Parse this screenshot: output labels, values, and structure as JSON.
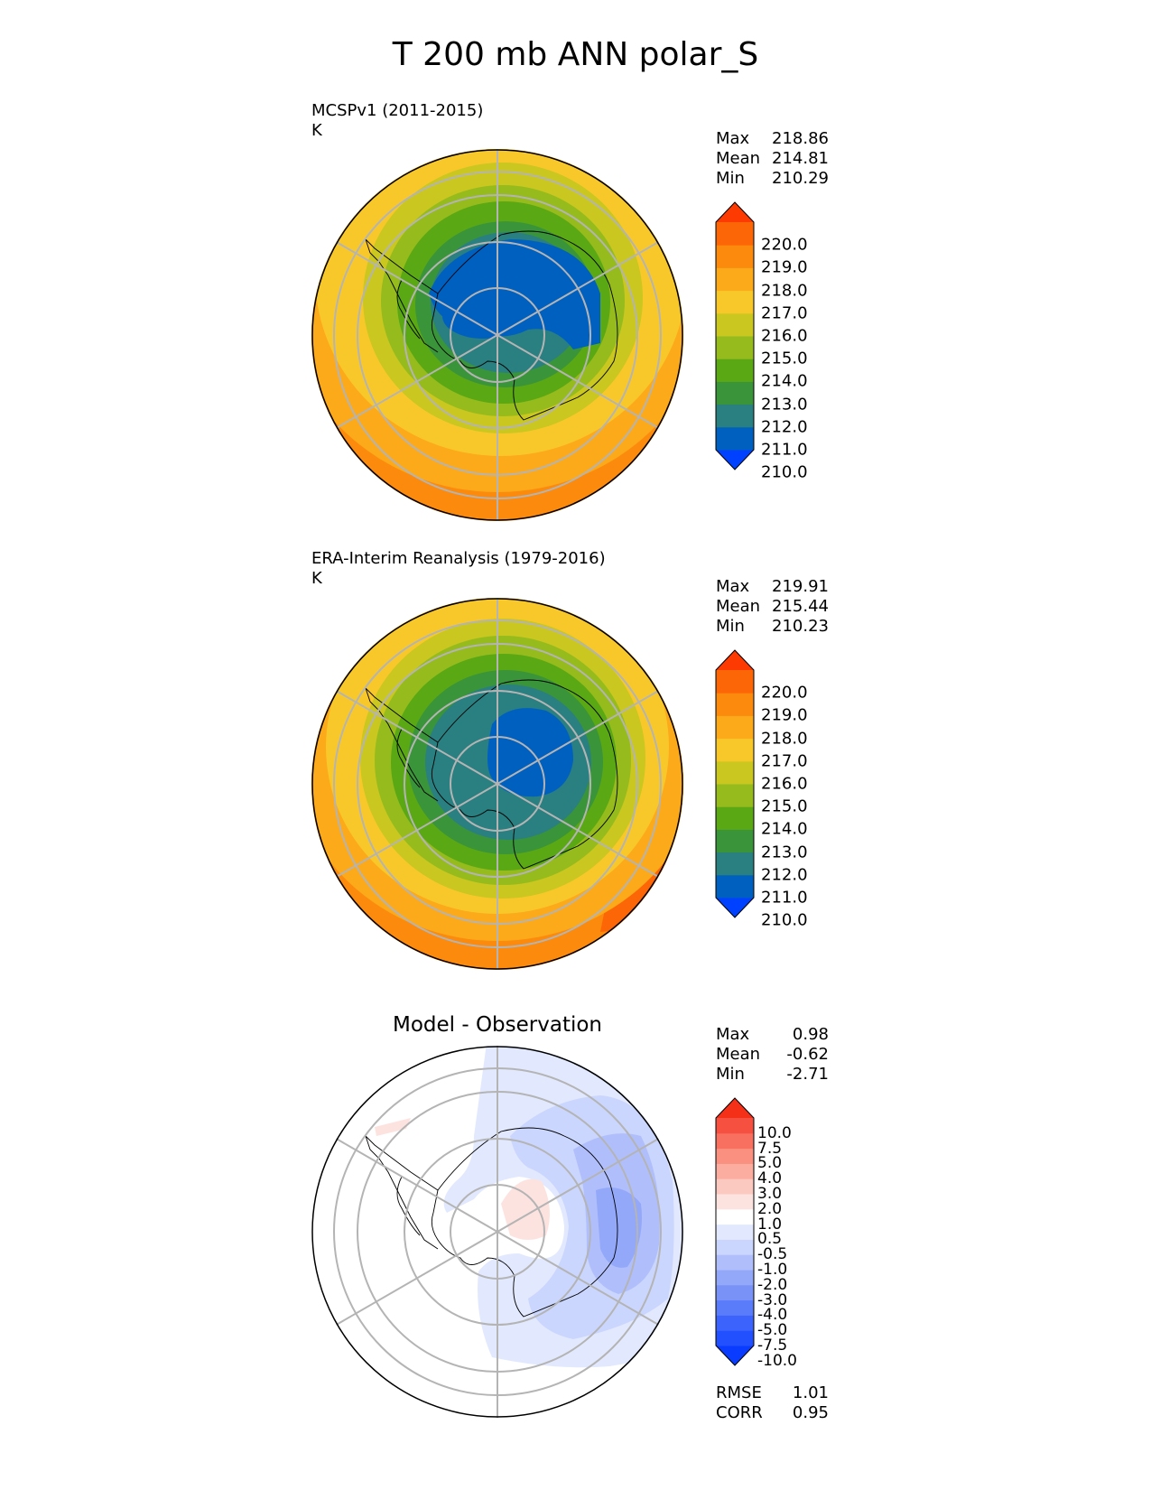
{
  "title": "T 200 mb ANN polar_S",
  "panels": [
    {
      "id": "model",
      "title": "MCSPv1 (2011-2015)",
      "units": "K",
      "stats": [
        {
          "label": "Max",
          "value": "218.86"
        },
        {
          "label": "Mean",
          "value": "214.81"
        },
        {
          "label": "Min",
          "value": "210.29"
        }
      ],
      "colorbar": {
        "labels": [
          "220.0",
          "219.0",
          "218.0",
          "217.0",
          "216.0",
          "215.0",
          "214.0",
          "213.0",
          "212.0",
          "211.0",
          "210.0"
        ],
        "colors": [
          "#0040ff",
          "#0060c0",
          "#2a7f80",
          "#3a943a",
          "#5aa814",
          "#95bb1c",
          "#c9c720",
          "#f8c82a",
          "#fca91a",
          "#fc8a0c",
          "#fc6606",
          "#fc3a02"
        ]
      }
    },
    {
      "id": "obs",
      "title": "ERA-Interim Reanalysis (1979-2016)",
      "units": "K",
      "stats": [
        {
          "label": "Max",
          "value": "219.91"
        },
        {
          "label": "Mean",
          "value": "215.44"
        },
        {
          "label": "Min",
          "value": "210.23"
        }
      ],
      "colorbar": {
        "labels": [
          "220.0",
          "219.0",
          "218.0",
          "217.0",
          "216.0",
          "215.0",
          "214.0",
          "213.0",
          "212.0",
          "211.0",
          "210.0"
        ],
        "colors": [
          "#0040ff",
          "#0060c0",
          "#2a7f80",
          "#3a943a",
          "#5aa814",
          "#95bb1c",
          "#c9c720",
          "#f8c82a",
          "#fca91a",
          "#fc8a0c",
          "#fc6606",
          "#fc3a02"
        ]
      }
    },
    {
      "id": "diff",
      "title": "Model - Observation",
      "stats": [
        {
          "label": "Max",
          "value": "0.98"
        },
        {
          "label": "Mean",
          "value": "-0.62"
        },
        {
          "label": "Min",
          "value": "-2.71"
        }
      ],
      "extra_stats": [
        {
          "label": "RMSE",
          "value": "1.01"
        },
        {
          "label": "CORR",
          "value": "0.95"
        }
      ],
      "colorbar": {
        "labels": [
          "10.0",
          "7.5",
          "5.0",
          "4.0",
          "3.0",
          "2.0",
          "1.0",
          "0.5",
          "-0.5",
          "-1.0",
          "-2.0",
          "-3.0",
          "-4.0",
          "-5.0",
          "-7.5",
          "-10.0"
        ],
        "colors": [
          "#0a3cff",
          "#2250ff",
          "#3c64fc",
          "#5a7cfa",
          "#7892f8",
          "#94a8fa",
          "#b0bffb",
          "#cad6fd",
          "#e2e9fe",
          "#ffffff",
          "#fde3e0",
          "#fcc9c0",
          "#fbada0",
          "#fa9080",
          "#f87060",
          "#f65040",
          "#f53018"
        ]
      }
    }
  ],
  "chart_data": [
    {
      "type": "heatmap",
      "title": "MCSPv1 (2011-2015)",
      "projection": "south polar stereographic",
      "units": "K",
      "colorbar_levels": [
        210.0,
        211.0,
        212.0,
        213.0,
        214.0,
        215.0,
        216.0,
        217.0,
        218.0,
        219.0,
        220.0
      ],
      "stats": {
        "max": 218.86,
        "mean": 214.81,
        "min": 210.29
      }
    },
    {
      "type": "heatmap",
      "title": "ERA-Interim Reanalysis (1979-2016)",
      "projection": "south polar stereographic",
      "units": "K",
      "colorbar_levels": [
        210.0,
        211.0,
        212.0,
        213.0,
        214.0,
        215.0,
        216.0,
        217.0,
        218.0,
        219.0,
        220.0
      ],
      "stats": {
        "max": 219.91,
        "mean": 215.44,
        "min": 210.23
      }
    },
    {
      "type": "heatmap",
      "title": "Model - Observation",
      "projection": "south polar stereographic",
      "colorbar_levels": [
        -10.0,
        -7.5,
        -5.0,
        -4.0,
        -3.0,
        -2.0,
        -1.0,
        -0.5,
        0.5,
        1.0,
        2.0,
        3.0,
        4.0,
        5.0,
        7.5,
        10.0
      ],
      "stats": {
        "max": 0.98,
        "mean": -0.62,
        "min": -2.71,
        "rmse": 1.01,
        "corr": 0.95
      }
    }
  ]
}
